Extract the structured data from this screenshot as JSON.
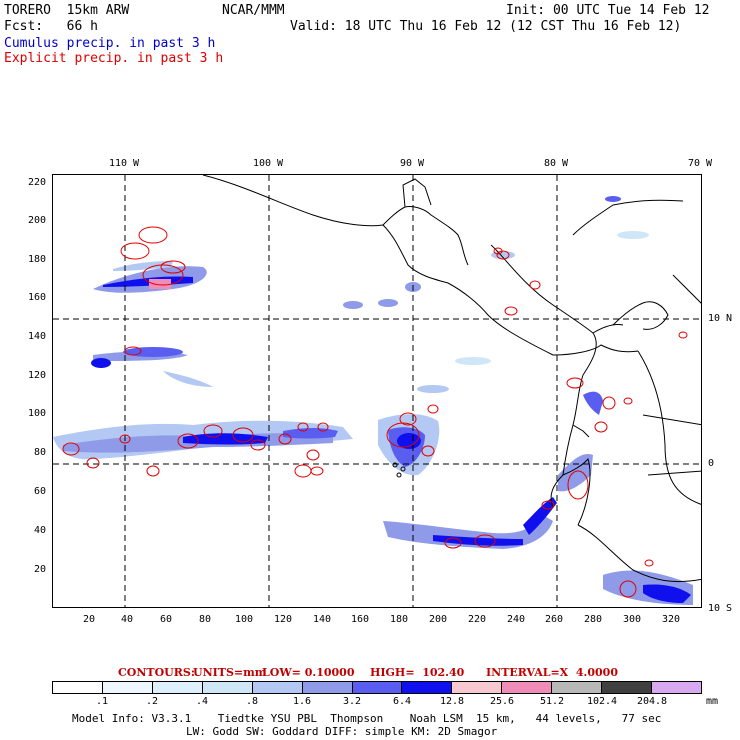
{
  "header": {
    "model": "TORERO  15km ARW",
    "center": "NCAR/MMM",
    "init": "Init: 00 UTC Tue 14 Feb 12",
    "fcst": "Fcst:   66 h",
    "valid": "Valid: 18 UTC Thu 16 Feb 12 (12 CST Thu 16 Feb 12)",
    "cumulus": "Cumulus precip. in past 3 h",
    "explicit": "Explicit precip. in past 3 h"
  },
  "colors": {
    "cumulus_text": "#0000cc",
    "explicit_text": "#dd0000",
    "contour": "#e00000"
  },
  "map": {
    "lon_labels": [
      "110 W",
      "100 W",
      "90 W",
      "80 W",
      "70 W"
    ],
    "lat_labels": [
      "10 N",
      "0",
      "10 S"
    ],
    "x_ticks": [
      "20",
      "40",
      "60",
      "80",
      "100",
      "120",
      "140",
      "160",
      "180",
      "200",
      "220",
      "240",
      "260",
      "280",
      "300",
      "320"
    ],
    "y_ticks": [
      "220",
      "200",
      "180",
      "160",
      "140",
      "120",
      "100",
      "80",
      "60",
      "40",
      "20"
    ]
  },
  "contour_info": {
    "contours": "CONTOURS:",
    "units": "UNITS=mm",
    "low": "LOW= 0.10000",
    "high": "HIGH=  102.40",
    "interval": "INTERVAL=X  4.0000"
  },
  "legend": {
    "unit": "mm",
    "levels": [
      ".1",
      ".2",
      ".4",
      ".8",
      "1.6",
      "3.2",
      "6.4",
      "12.8",
      "25.6",
      "51.2",
      "102.4",
      "204.8"
    ],
    "colors": [
      "#ffffff",
      "#eef7ff",
      "#ddf0fb",
      "#cfe6f7",
      "#b3c8f2",
      "#8f9ae8",
      "#5a5ef0",
      "#1010ee",
      "#f8c8d0",
      "#f08cb8",
      "#b8b8b8",
      "#404040",
      "#d8a8f0"
    ]
  },
  "footer": {
    "line1": "Model Info: V3.3.1    Tiedtke YSU PBL  Thompson    Noah LSM  15 km,   44 levels,   77 sec",
    "line2": "LW: Godd SW: Goddard DIFF: simple KM: 2D Smagor"
  }
}
